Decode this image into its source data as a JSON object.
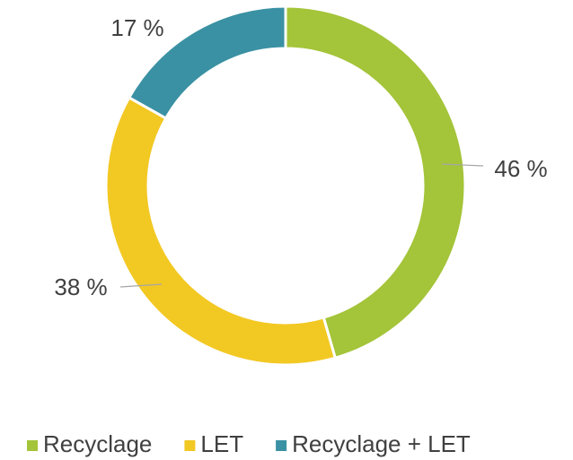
{
  "chart_data": {
    "type": "donut",
    "categories": [
      "Recyclage",
      "LET",
      "Recyclage + LET"
    ],
    "values": [
      46,
      38,
      17
    ],
    "value_labels": [
      "46 %",
      "38 %",
      "17 %"
    ],
    "colors": [
      "#a4c439",
      "#f2c823",
      "#3a91a3"
    ],
    "legend": "bottom"
  }
}
